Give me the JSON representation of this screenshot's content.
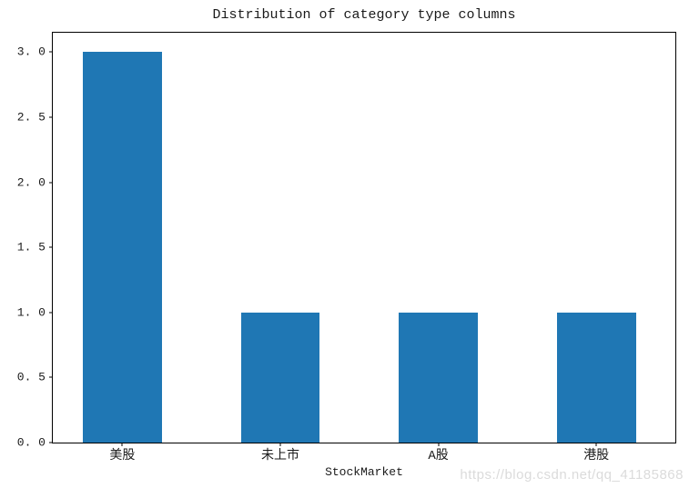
{
  "chart_data": {
    "type": "bar",
    "title": "Distribution of category type columns",
    "xlabel": "StockMarket",
    "ylabel": "",
    "categories": [
      "美股",
      "未上市",
      "A股",
      "港股"
    ],
    "values": [
      3,
      1,
      1,
      1
    ],
    "bar_color": "#1f77b4",
    "ylim": [
      0,
      3.15
    ],
    "xlim": [
      -0.44,
      3.5
    ],
    "bar_width_units": 0.5,
    "yticks": [
      0.0,
      0.5,
      1.0,
      1.5,
      2.0,
      2.5,
      3.0
    ],
    "ytick_labels": [
      "0. 0",
      "0. 5",
      "1. 0",
      "1. 5",
      "2. 0",
      "2. 5",
      "3. 0"
    ],
    "grid": false,
    "legend": "none"
  },
  "watermark": {
    "text": "https://blog.csdn.net/qq_41185868",
    "color": "#dbdbdb"
  }
}
